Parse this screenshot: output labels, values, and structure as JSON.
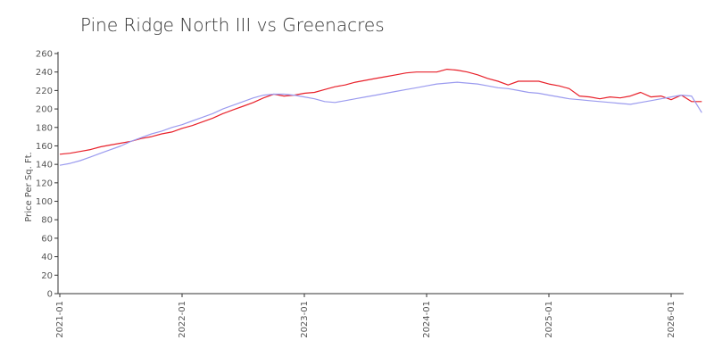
{
  "chart_data": {
    "type": "line",
    "title": "Pine Ridge North III vs Greenacres",
    "xlabel": "",
    "ylabel": "Price Per Sq. Ft.",
    "ylim": [
      0,
      260
    ],
    "yticks": [
      0,
      20,
      40,
      60,
      80,
      100,
      120,
      140,
      160,
      180,
      200,
      220,
      240,
      260
    ],
    "xticks": [
      "2021-01",
      "2022-01",
      "2023-01",
      "2024-01",
      "2025-01",
      "2026-01"
    ],
    "xlim": [
      "2021-01",
      "2026-01"
    ],
    "grid": false,
    "legend": "none",
    "series": [
      {
        "color": "#e8202a",
        "points": [
          [
            "2021-01",
            151
          ],
          [
            "2021-02",
            152
          ],
          [
            "2021-03",
            154
          ],
          [
            "2021-04",
            156
          ],
          [
            "2021-05",
            159
          ],
          [
            "2021-06",
            161
          ],
          [
            "2021-07",
            163
          ],
          [
            "2021-08",
            165
          ],
          [
            "2021-09",
            168
          ],
          [
            "2021-10",
            170
          ],
          [
            "2021-11",
            173
          ],
          [
            "2021-12",
            175
          ],
          [
            "2022-01",
            179
          ],
          [
            "2022-02",
            182
          ],
          [
            "2022-03",
            186
          ],
          [
            "2022-04",
            190
          ],
          [
            "2022-05",
            195
          ],
          [
            "2022-06",
            199
          ],
          [
            "2022-07",
            203
          ],
          [
            "2022-08",
            207
          ],
          [
            "2022-09",
            212
          ],
          [
            "2022-10",
            216
          ],
          [
            "2022-11",
            214
          ],
          [
            "2022-12",
            215
          ],
          [
            "2023-01",
            217
          ],
          [
            "2023-02",
            218
          ],
          [
            "2023-03",
            221
          ],
          [
            "2023-04",
            224
          ],
          [
            "2023-05",
            226
          ],
          [
            "2023-06",
            229
          ],
          [
            "2023-07",
            231
          ],
          [
            "2023-08",
            233
          ],
          [
            "2023-09",
            235
          ],
          [
            "2023-10",
            237
          ],
          [
            "2023-11",
            239
          ],
          [
            "2023-12",
            240
          ],
          [
            "2024-01",
            240
          ],
          [
            "2024-02",
            240
          ],
          [
            "2024-03",
            243
          ],
          [
            "2024-04",
            242
          ],
          [
            "2024-05",
            240
          ],
          [
            "2024-06",
            237
          ],
          [
            "2024-07",
            233
          ],
          [
            "2024-08",
            230
          ],
          [
            "2024-09",
            226
          ],
          [
            "2024-10",
            230
          ],
          [
            "2024-11",
            230
          ],
          [
            "2024-12",
            230
          ],
          [
            "2025-01",
            227
          ],
          [
            "2025-02",
            225
          ],
          [
            "2025-03",
            222
          ],
          [
            "2025-04",
            214
          ],
          [
            "2025-05",
            213
          ],
          [
            "2025-06",
            211
          ],
          [
            "2025-07",
            213
          ],
          [
            "2025-08",
            212
          ],
          [
            "2025-09",
            214
          ],
          [
            "2025-10",
            218
          ],
          [
            "2025-11",
            213
          ],
          [
            "2025-12",
            214
          ],
          [
            "2026-01",
            210
          ],
          [
            "2026-02",
            215
          ],
          [
            "2026-03",
            208
          ],
          [
            "2026-04",
            208
          ]
        ]
      },
      {
        "color": "#9b9bef",
        "points": [
          [
            "2021-01",
            139
          ],
          [
            "2021-02",
            141
          ],
          [
            "2021-03",
            144
          ],
          [
            "2021-04",
            148
          ],
          [
            "2021-05",
            152
          ],
          [
            "2021-06",
            156
          ],
          [
            "2021-07",
            160
          ],
          [
            "2021-08",
            165
          ],
          [
            "2021-09",
            169
          ],
          [
            "2021-10",
            173
          ],
          [
            "2021-11",
            176
          ],
          [
            "2021-12",
            180
          ],
          [
            "2022-01",
            183
          ],
          [
            "2022-02",
            187
          ],
          [
            "2022-03",
            191
          ],
          [
            "2022-04",
            195
          ],
          [
            "2022-05",
            200
          ],
          [
            "2022-06",
            204
          ],
          [
            "2022-07",
            208
          ],
          [
            "2022-08",
            212
          ],
          [
            "2022-09",
            215
          ],
          [
            "2022-10",
            216
          ],
          [
            "2022-11",
            216
          ],
          [
            "2022-12",
            215
          ],
          [
            "2023-01",
            213
          ],
          [
            "2023-02",
            211
          ],
          [
            "2023-03",
            208
          ],
          [
            "2023-04",
            207
          ],
          [
            "2023-05",
            209
          ],
          [
            "2023-06",
            211
          ],
          [
            "2023-07",
            213
          ],
          [
            "2023-08",
            215
          ],
          [
            "2023-09",
            217
          ],
          [
            "2023-10",
            219
          ],
          [
            "2023-11",
            221
          ],
          [
            "2023-12",
            223
          ],
          [
            "2024-01",
            225
          ],
          [
            "2024-02",
            227
          ],
          [
            "2024-03",
            228
          ],
          [
            "2024-04",
            229
          ],
          [
            "2024-05",
            228
          ],
          [
            "2024-06",
            227
          ],
          [
            "2024-07",
            225
          ],
          [
            "2024-08",
            223
          ],
          [
            "2024-09",
            222
          ],
          [
            "2024-10",
            220
          ],
          [
            "2024-11",
            218
          ],
          [
            "2024-12",
            217
          ],
          [
            "2025-01",
            215
          ],
          [
            "2025-02",
            213
          ],
          [
            "2025-03",
            211
          ],
          [
            "2025-04",
            210
          ],
          [
            "2025-05",
            209
          ],
          [
            "2025-06",
            208
          ],
          [
            "2025-07",
            207
          ],
          [
            "2025-08",
            206
          ],
          [
            "2025-09",
            205
          ],
          [
            "2025-10",
            207
          ],
          [
            "2025-11",
            209
          ],
          [
            "2025-12",
            211
          ],
          [
            "2026-01",
            213
          ],
          [
            "2026-02",
            215
          ],
          [
            "2026-03",
            214
          ],
          [
            "2026-04",
            196
          ]
        ]
      }
    ]
  }
}
